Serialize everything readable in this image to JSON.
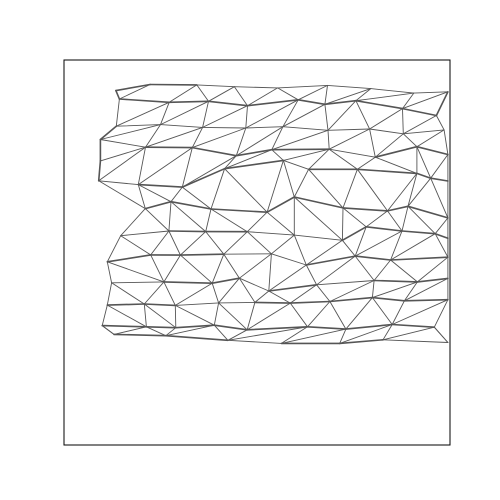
{
  "figure": {
    "background": "#ffffff",
    "frame_color": "#000000",
    "edge_color": "#555555",
    "axis_ticks_visible": false,
    "grid": false,
    "title": ""
  },
  "mesh": {
    "description": "",
    "nodes": [
      [
        3.09,
        8.79
      ],
      [
        5.8,
        8.77
      ],
      [
        7.99,
        8.67
      ],
      [
        10.5,
        8.6
      ],
      [
        13.4,
        8.74
      ],
      [
        15.92,
        8.56
      ],
      [
        18.42,
        8.31
      ],
      [
        20.4,
        8.38
      ],
      [
        1.1,
        8.45
      ],
      [
        1.3,
        7.98
      ],
      [
        4.2,
        7.79
      ],
      [
        6.48,
        7.85
      ],
      [
        8.75,
        7.6
      ],
      [
        11.7,
        7.93
      ],
      [
        13.25,
        7.68
      ],
      [
        15.05,
        7.88
      ],
      [
        17.76,
        7.44
      ],
      [
        19.73,
        7.05
      ],
      [
        1.12,
        6.45
      ],
      [
        3.69,
        6.54
      ],
      [
        6.14,
        6.38
      ],
      [
        8.65,
        6.35
      ],
      [
        10.81,
        6.42
      ],
      [
        13.43,
        6.22
      ],
      [
        15.85,
        6.29
      ],
      [
        17.81,
        6.02
      ],
      [
        20.18,
        6.24
      ],
      [
        0.2,
        5.7
      ],
      [
        2.82,
        5.27
      ],
      [
        5.54,
        5.25
      ],
      [
        8.1,
        4.79
      ],
      [
        10.16,
        5.13
      ],
      [
        13.5,
        5.16
      ],
      [
        16.18,
        4.71
      ],
      [
        18.6,
        5.3
      ],
      [
        20.4,
        4.86
      ],
      [
        0.2,
        4.5
      ],
      [
        0.1,
        3.38
      ],
      [
        2.4,
        3.17
      ],
      [
        4.96,
        3.03
      ],
      [
        7.42,
        4.06
      ],
      [
        10.84,
        4.53
      ],
      [
        12.3,
        4.03
      ],
      [
        15.14,
        4.03
      ],
      [
        18.6,
        3.8
      ],
      [
        19.4,
        3.53
      ],
      [
        20.4,
        3.37
      ],
      [
        2.81,
        1.82
      ],
      [
        4.3,
        2.21
      ],
      [
        6.63,
        1.8
      ],
      [
        9.89,
        1.62
      ],
      [
        11.47,
        2.47
      ],
      [
        14.3,
        1.86
      ],
      [
        16.89,
        1.69
      ],
      [
        18.08,
        1.95
      ],
      [
        20.4,
        1.3
      ],
      [
        1.38,
        0.3
      ],
      [
        4.18,
        0.56
      ],
      [
        6.32,
        0.53
      ],
      [
        8.74,
        0.52
      ],
      [
        11.47,
        0.33
      ],
      [
        14.27,
        0.04
      ],
      [
        15.65,
        0.8
      ],
      [
        17.73,
        0.56
      ],
      [
        19.66,
        0.41
      ],
      [
        20.4,
        0.16
      ],
      [
        0.6,
        -1.17
      ],
      [
        3.12,
        -0.78
      ],
      [
        4.85,
        -0.79
      ],
      [
        7.37,
        -0.74
      ],
      [
        10.14,
        -0.72
      ],
      [
        12.17,
        -1.35
      ],
      [
        15.01,
        -0.85
      ],
      [
        17.07,
        -1.07
      ],
      [
        20.4,
        -0.91
      ],
      [
        0.85,
        -2.35
      ],
      [
        3.89,
        -2.3
      ],
      [
        6.7,
        -2.37
      ],
      [
        8.28,
        -2.09
      ],
      [
        9.99,
        -2.81
      ],
      [
        12.77,
        -2.46
      ],
      [
        16.11,
        -2.22
      ],
      [
        18.63,
        -2.3
      ],
      [
        20.4,
        -2.1
      ],
      [
        0.6,
        -3.6
      ],
      [
        2.75,
        -3.54
      ],
      [
        4.55,
        -3.62
      ],
      [
        7.07,
        -3.48
      ],
      [
        9.18,
        -3.45
      ],
      [
        11.24,
        -3.49
      ],
      [
        13.54,
        -3.4
      ],
      [
        16.01,
        -3.18
      ],
      [
        17.87,
        -3.36
      ],
      [
        20.4,
        -3.3
      ],
      [
        0.3,
        -4.75
      ],
      [
        2.87,
        -4.82
      ],
      [
        4.58,
        -4.87
      ],
      [
        6.82,
        -4.73
      ],
      [
        8.73,
        -4.99
      ],
      [
        12.24,
        -4.82
      ],
      [
        14.47,
        -4.95
      ],
      [
        17.16,
        -4.69
      ],
      [
        19.61,
        -4.84
      ],
      [
        0.99,
        -5.25
      ],
      [
        4.0,
        -5.32
      ],
      [
        7.61,
        -5.58
      ],
      [
        10.72,
        -5.75
      ],
      [
        14.11,
        -5.75
      ],
      [
        16.63,
        -5.55
      ],
      [
        20.4,
        -5.7
      ]
    ],
    "edges": [
      [
        0,
        1
      ],
      [
        1,
        2
      ],
      [
        2,
        3
      ],
      [
        3,
        4
      ],
      [
        4,
        5
      ],
      [
        5,
        6
      ],
      [
        6,
        7
      ],
      [
        0,
        8
      ],
      [
        8,
        9
      ],
      [
        9,
        10
      ],
      [
        10,
        11
      ],
      [
        11,
        12
      ],
      [
        12,
        13
      ],
      [
        13,
        14
      ],
      [
        14,
        15
      ],
      [
        15,
        16
      ],
      [
        16,
        17
      ],
      [
        17,
        7
      ],
      [
        9,
        18
      ],
      [
        18,
        19
      ],
      [
        19,
        20
      ],
      [
        20,
        21
      ],
      [
        21,
        22
      ],
      [
        22,
        23
      ],
      [
        23,
        24
      ],
      [
        24,
        25
      ],
      [
        25,
        26
      ],
      [
        26,
        17
      ],
      [
        18,
        27
      ],
      [
        27,
        28
      ],
      [
        28,
        29
      ],
      [
        29,
        30
      ],
      [
        30,
        31
      ],
      [
        31,
        32
      ],
      [
        32,
        33
      ],
      [
        33,
        34
      ],
      [
        34,
        35
      ],
      [
        35,
        26
      ],
      [
        27,
        36
      ],
      [
        36,
        37
      ],
      [
        37,
        38
      ],
      [
        38,
        39
      ],
      [
        39,
        40
      ],
      [
        40,
        41
      ],
      [
        41,
        42
      ],
      [
        42,
        43
      ],
      [
        43,
        44
      ],
      [
        44,
        45
      ],
      [
        45,
        46
      ],
      [
        46,
        35
      ],
      [
        37,
        47
      ],
      [
        47,
        48
      ],
      [
        48,
        49
      ],
      [
        49,
        50
      ],
      [
        50,
        51
      ],
      [
        51,
        52
      ],
      [
        52,
        53
      ],
      [
        53,
        54
      ],
      [
        54,
        55
      ],
      [
        55,
        46
      ],
      [
        47,
        56
      ],
      [
        56,
        57
      ],
      [
        57,
        58
      ],
      [
        58,
        59
      ],
      [
        59,
        60
      ],
      [
        60,
        61
      ],
      [
        61,
        62
      ],
      [
        62,
        63
      ],
      [
        63,
        64
      ],
      [
        64,
        65
      ],
      [
        65,
        55
      ],
      [
        56,
        66
      ],
      [
        66,
        67
      ],
      [
        67,
        68
      ],
      [
        68,
        69
      ],
      [
        69,
        70
      ],
      [
        70,
        71
      ],
      [
        71,
        72
      ],
      [
        72,
        73
      ],
      [
        73,
        74
      ],
      [
        74,
        65
      ],
      [
        66,
        75
      ],
      [
        75,
        76
      ],
      [
        76,
        77
      ],
      [
        77,
        78
      ],
      [
        78,
        79
      ],
      [
        79,
        80
      ],
      [
        80,
        81
      ],
      [
        81,
        82
      ],
      [
        82,
        83
      ],
      [
        83,
        74
      ],
      [
        75,
        84
      ],
      [
        84,
        85
      ],
      [
        85,
        86
      ],
      [
        86,
        87
      ],
      [
        87,
        88
      ],
      [
        88,
        89
      ],
      [
        89,
        90
      ],
      [
        90,
        91
      ],
      [
        91,
        92
      ],
      [
        92,
        93
      ],
      [
        93,
        83
      ],
      [
        84,
        94
      ],
      [
        94,
        95
      ],
      [
        95,
        96
      ],
      [
        96,
        97
      ],
      [
        97,
        98
      ],
      [
        98,
        99
      ],
      [
        99,
        100
      ],
      [
        100,
        101
      ],
      [
        101,
        102
      ],
      [
        102,
        93
      ],
      [
        94,
        103
      ],
      [
        103,
        104
      ],
      [
        104,
        105
      ],
      [
        105,
        106
      ],
      [
        106,
        107
      ],
      [
        107,
        108
      ],
      [
        108,
        109
      ],
      [
        109,
        102
      ],
      [
        0,
        9
      ],
      [
        1,
        10
      ],
      [
        1,
        11
      ],
      [
        2,
        11
      ],
      [
        2,
        12
      ],
      [
        3,
        12
      ],
      [
        3,
        13
      ],
      [
        4,
        13
      ],
      [
        4,
        14
      ],
      [
        5,
        14
      ],
      [
        5,
        15
      ],
      [
        6,
        15
      ],
      [
        6,
        16
      ],
      [
        7,
        16
      ],
      [
        10,
        18
      ],
      [
        10,
        19
      ],
      [
        11,
        19
      ],
      [
        11,
        20
      ],
      [
        12,
        20
      ],
      [
        12,
        21
      ],
      [
        13,
        21
      ],
      [
        13,
        22
      ],
      [
        14,
        22
      ],
      [
        14,
        23
      ],
      [
        15,
        23
      ],
      [
        15,
        24
      ],
      [
        16,
        24
      ],
      [
        16,
        25
      ],
      [
        17,
        25
      ],
      [
        19,
        27
      ],
      [
        19,
        28
      ],
      [
        20,
        28
      ],
      [
        20,
        29
      ],
      [
        21,
        29
      ],
      [
        21,
        30
      ],
      [
        22,
        30
      ],
      [
        22,
        31
      ],
      [
        23,
        31
      ],
      [
        23,
        32
      ],
      [
        24,
        32
      ],
      [
        24,
        33
      ],
      [
        25,
        33
      ],
      [
        25,
        34
      ],
      [
        26,
        34
      ],
      [
        28,
        36
      ],
      [
        28,
        37
      ],
      [
        28,
        38
      ],
      [
        29,
        38
      ],
      [
        29,
        39
      ],
      [
        30,
        39
      ],
      [
        30,
        40
      ],
      [
        31,
        40
      ],
      [
        31,
        41
      ],
      [
        32,
        41
      ],
      [
        32,
        42
      ],
      [
        32,
        43
      ],
      [
        33,
        43
      ],
      [
        33,
        44
      ],
      [
        34,
        44
      ],
      [
        34,
        45
      ],
      [
        35,
        45
      ],
      [
        38,
        47
      ],
      [
        38,
        48
      ],
      [
        39,
        48
      ],
      [
        39,
        49
      ],
      [
        40,
        49
      ],
      [
        40,
        50
      ],
      [
        41,
        50
      ],
      [
        41,
        51
      ],
      [
        42,
        51
      ],
      [
        42,
        52
      ],
      [
        43,
        52
      ],
      [
        43,
        53
      ],
      [
        44,
        53
      ],
      [
        44,
        54
      ],
      [
        45,
        54
      ],
      [
        45,
        55
      ],
      [
        47,
        57
      ],
      [
        48,
        57
      ],
      [
        48,
        58
      ],
      [
        49,
        58
      ],
      [
        49,
        59
      ],
      [
        50,
        59
      ],
      [
        50,
        60
      ],
      [
        51,
        60
      ],
      [
        51,
        61
      ],
      [
        52,
        61
      ],
      [
        52,
        62
      ],
      [
        53,
        62
      ],
      [
        53,
        63
      ],
      [
        54,
        63
      ],
      [
        54,
        64
      ],
      [
        55,
        64
      ],
      [
        56,
        67
      ],
      [
        57,
        67
      ],
      [
        57,
        68
      ],
      [
        58,
        68
      ],
      [
        58,
        69
      ],
      [
        59,
        69
      ],
      [
        59,
        70
      ],
      [
        60,
        70
      ],
      [
        60,
        71
      ],
      [
        61,
        71
      ],
      [
        61,
        72
      ],
      [
        62,
        72
      ],
      [
        63,
        72
      ],
      [
        63,
        73
      ],
      [
        64,
        73
      ],
      [
        64,
        74
      ],
      [
        65,
        74
      ],
      [
        66,
        76
      ],
      [
        67,
        76
      ],
      [
        68,
        76
      ],
      [
        68,
        77
      ],
      [
        69,
        77
      ],
      [
        69,
        78
      ],
      [
        70,
        78
      ],
      [
        70,
        79
      ],
      [
        71,
        79
      ],
      [
        71,
        80
      ],
      [
        72,
        80
      ],
      [
        72,
        81
      ],
      [
        73,
        81
      ],
      [
        73,
        82
      ],
      [
        74,
        82
      ],
      [
        75,
        85
      ],
      [
        76,
        85
      ],
      [
        76,
        86
      ],
      [
        77,
        86
      ],
      [
        77,
        87
      ],
      [
        78,
        87
      ],
      [
        78,
        88
      ],
      [
        79,
        88
      ],
      [
        79,
        89
      ],
      [
        80,
        89
      ],
      [
        80,
        90
      ],
      [
        81,
        90
      ],
      [
        81,
        91
      ],
      [
        82,
        91
      ],
      [
        82,
        92
      ],
      [
        83,
        92
      ],
      [
        84,
        95
      ],
      [
        85,
        95
      ],
      [
        85,
        96
      ],
      [
        86,
        96
      ],
      [
        86,
        97
      ],
      [
        87,
        97
      ],
      [
        87,
        98
      ],
      [
        88,
        98
      ],
      [
        89,
        98
      ],
      [
        89,
        99
      ],
      [
        90,
        99
      ],
      [
        90,
        100
      ],
      [
        91,
        100
      ],
      [
        91,
        101
      ],
      [
        92,
        101
      ],
      [
        93,
        101
      ],
      [
        94,
        103
      ],
      [
        95,
        103
      ],
      [
        95,
        104
      ],
      [
        96,
        104
      ],
      [
        97,
        104
      ],
      [
        97,
        105
      ],
      [
        98,
        105
      ],
      [
        99,
        105
      ],
      [
        99,
        106
      ],
      [
        100,
        106
      ],
      [
        100,
        107
      ],
      [
        101,
        107
      ],
      [
        101,
        108
      ],
      [
        102,
        108
      ],
      [
        102,
        109
      ]
    ],
    "thick_edges": [
      [
        0,
        1
      ],
      [
        0,
        8
      ],
      [
        8,
        9
      ],
      [
        9,
        10
      ],
      [
        10,
        11
      ],
      [
        11,
        12
      ],
      [
        12,
        13
      ],
      [
        13,
        14
      ],
      [
        14,
        15
      ],
      [
        15,
        16
      ],
      [
        16,
        17
      ],
      [
        17,
        7
      ],
      [
        18,
        27
      ],
      [
        27,
        36
      ],
      [
        36,
        37
      ],
      [
        28,
        29
      ],
      [
        29,
        30
      ],
      [
        30,
        31
      ],
      [
        31,
        32
      ],
      [
        33,
        34
      ],
      [
        34,
        35
      ],
      [
        38,
        39
      ],
      [
        39,
        40
      ],
      [
        40,
        41
      ],
      [
        42,
        43
      ],
      [
        43,
        44
      ],
      [
        44,
        45
      ],
      [
        45,
        46
      ],
      [
        47,
        48
      ],
      [
        48,
        49
      ],
      [
        49,
        50
      ],
      [
        50,
        51
      ],
      [
        51,
        52
      ],
      [
        52,
        53
      ],
      [
        53,
        54
      ],
      [
        54,
        55
      ],
      [
        57,
        58
      ],
      [
        58,
        59
      ],
      [
        61,
        62
      ],
      [
        62,
        63
      ],
      [
        63,
        64
      ],
      [
        64,
        65
      ],
      [
        66,
        67
      ],
      [
        67,
        68
      ],
      [
        68,
        69
      ],
      [
        71,
        72
      ],
      [
        72,
        73
      ],
      [
        73,
        74
      ],
      [
        76,
        77
      ],
      [
        77,
        78
      ],
      [
        79,
        80
      ],
      [
        81,
        82
      ],
      [
        82,
        83
      ],
      [
        84,
        85
      ],
      [
        85,
        86
      ],
      [
        88,
        89
      ],
      [
        89,
        90
      ],
      [
        90,
        91
      ],
      [
        91,
        92
      ],
      [
        92,
        93
      ],
      [
        94,
        95
      ],
      [
        95,
        96
      ],
      [
        96,
        97
      ],
      [
        97,
        98
      ],
      [
        98,
        99
      ],
      [
        99,
        100
      ],
      [
        100,
        101
      ],
      [
        101,
        102
      ],
      [
        103,
        104
      ],
      [
        104,
        105
      ],
      [
        106,
        107
      ],
      [
        107,
        108
      ]
    ]
  }
}
